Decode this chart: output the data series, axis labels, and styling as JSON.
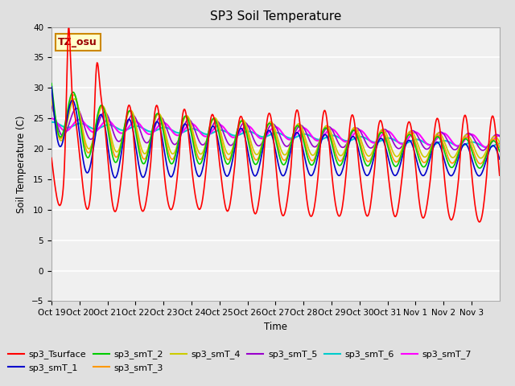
{
  "title": "SP3 Soil Temperature",
  "ylabel": "Soil Temperature (C)",
  "xlabel": "Time",
  "annotation": "TZ_osu",
  "ylim": [
    -5,
    40
  ],
  "yticks": [
    -5,
    0,
    5,
    10,
    15,
    20,
    25,
    30,
    35,
    40
  ],
  "xtick_labels": [
    "Oct 19",
    "Oct 20",
    "Oct 21",
    "Oct 22",
    "Oct 23",
    "Oct 24",
    "Oct 25",
    "Oct 26",
    "Oct 27",
    "Oct 28",
    "Oct 29",
    "Oct 30",
    "Oct 31",
    "Nov 1",
    "Nov 2",
    "Nov 3"
  ],
  "series_colors": {
    "sp3_Tsurface": "#ff0000",
    "sp3_smT_1": "#0000cc",
    "sp3_smT_2": "#00cc00",
    "sp3_smT_3": "#ff9900",
    "sp3_smT_4": "#cccc00",
    "sp3_smT_5": "#9900cc",
    "sp3_smT_6": "#00cccc",
    "sp3_smT_7": "#ff00ff"
  }
}
